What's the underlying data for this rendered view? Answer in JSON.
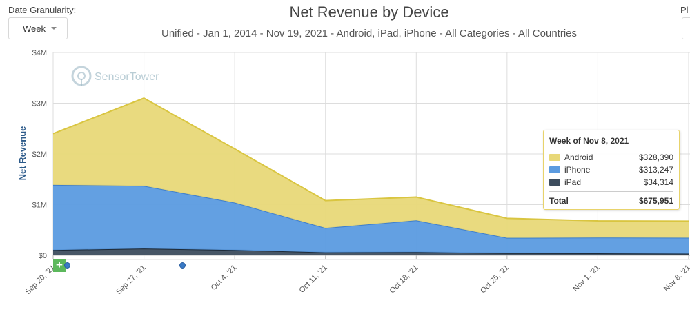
{
  "controls": {
    "granularity_label": "Date Granularity:",
    "granularity_value": "Week",
    "right_label": "Pl"
  },
  "chart_data": {
    "type": "area",
    "stacked": true,
    "title": "Net Revenue by Device",
    "subtitle": "Unified - Jan 1, 2014 - Nov 19, 2021 - Android, iPad, iPhone - All Categories - All Countries",
    "xlabel": "",
    "ylabel": "Net Revenue",
    "categories": [
      "Sep 20, '21",
      "Sep 27, '21",
      "Oct 4, '21",
      "Oct 11, '21",
      "Oct 18, '21",
      "Oct 25, '21",
      "Nov 1, '21",
      "Nov 8, '21"
    ],
    "series": [
      {
        "name": "iPad",
        "color": "#3d4d5e",
        "values": [
          105000,
          135000,
          105000,
          60000,
          65000,
          45000,
          40000,
          34314
        ]
      },
      {
        "name": "iPhone",
        "color": "#5b9be0",
        "values": [
          1285000,
          1235000,
          935000,
          480000,
          625000,
          300000,
          310000,
          313247
        ]
      },
      {
        "name": "Android",
        "color": "#e8d878",
        "values": [
          1010000,
          1730000,
          1060000,
          540000,
          460000,
          385000,
          330000,
          328390
        ]
      }
    ],
    "ylim": [
      0,
      4000000
    ],
    "yticks": [
      {
        "value": 0,
        "label": "$0"
      },
      {
        "value": 1000000,
        "label": "$1M"
      },
      {
        "value": 2000000,
        "label": "$2M"
      },
      {
        "value": 3000000,
        "label": "$3M"
      },
      {
        "value": 4000000,
        "label": "$4M"
      }
    ],
    "grid": true,
    "watermark": "SensorTower"
  },
  "tooltip": {
    "title": "Week of Nov 8, 2021",
    "rows": [
      {
        "name": "Android",
        "value": "$328,390",
        "color": "#e8d878"
      },
      {
        "name": "iPhone",
        "value": "$313,247",
        "color": "#5b9be0"
      },
      {
        "name": "iPad",
        "value": "$34,314",
        "color": "#3d4d5e"
      }
    ],
    "total_label": "Total",
    "total_value": "$675,951"
  }
}
